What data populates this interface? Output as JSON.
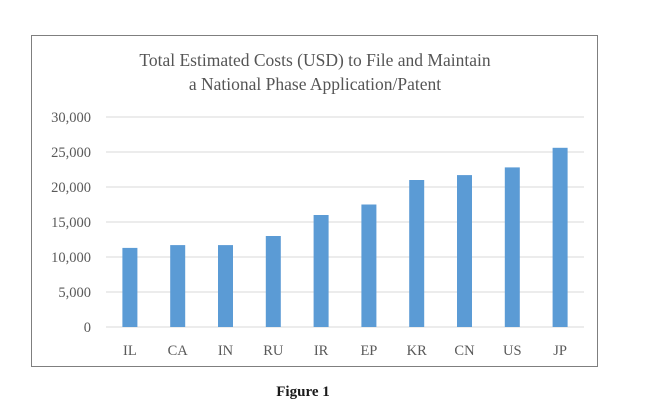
{
  "chart_data": {
    "type": "bar",
    "title_lines": [
      "Total Estimated Costs (USD) to File and Maintain",
      "a National Phase Application/Patent"
    ],
    "xlabel": "",
    "ylabel": "",
    "categories": [
      "IL",
      "CA",
      "IN",
      "RU",
      "IR",
      "EP",
      "KR",
      "CN",
      "US",
      "JP"
    ],
    "values": [
      11300,
      11700,
      11700,
      13000,
      16000,
      17500,
      21000,
      21700,
      22800,
      25600
    ],
    "ylim": [
      0,
      30000
    ],
    "yticks": [
      0,
      5000,
      10000,
      15000,
      20000,
      25000,
      30000
    ],
    "ytick_labels": [
      "0",
      "5,000",
      "10,000",
      "15,000",
      "20,000",
      "25,000",
      "30,000"
    ],
    "grid": true,
    "legend": "none",
    "bar_color": "#5b9bd5"
  },
  "caption": "Figure 1"
}
